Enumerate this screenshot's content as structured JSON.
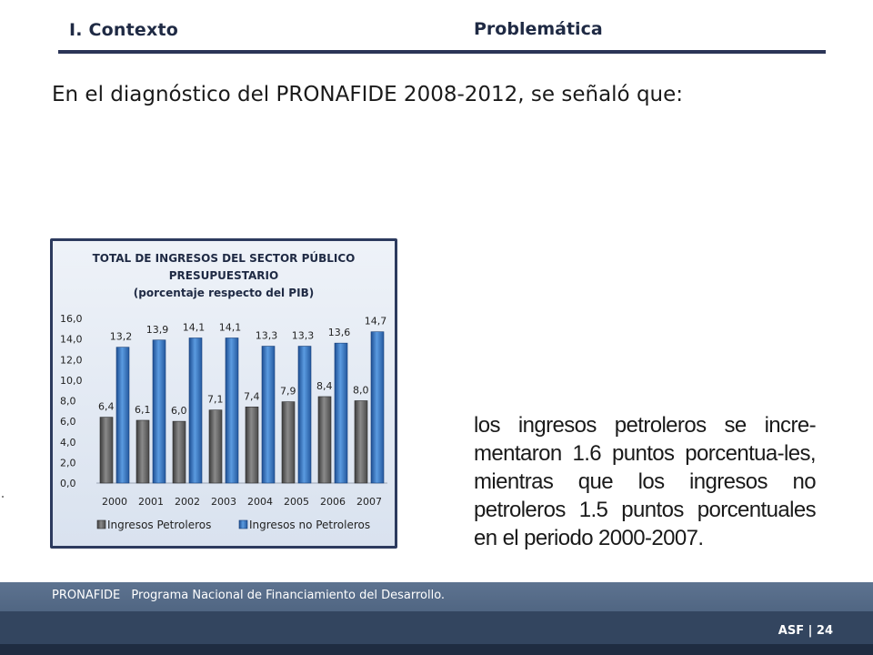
{
  "header": {
    "section": "I. Contexto",
    "title": "Problemática"
  },
  "intro": "En el diagnóstico del PRONAFIDE 2008-2012, se señaló que:",
  "body_text": "los ingresos petroleros se incre-mentaron 1.6 puntos porcentua-les, mientras que los ingresos no petroleros 1.5 puntos porcentuales en el periodo 2000-2007.",
  "footer": {
    "abbr": "PRONAFIDE",
    "definition": "Programa Nacional de Financiamiento del Desarrollo.",
    "page": "ASF | 24"
  },
  "colors": {
    "accent": "#2b3557",
    "petroleros": "#6e6e6e",
    "no_petroleros": "#3b78c8"
  },
  "chart_data": {
    "type": "bar",
    "title_lines": [
      "TOTAL  DE INGRESOS  DEL SECTOR PÚBLICO",
      "PRESUPUESTARIO",
      "(porcentaje respecto del PIB)"
    ],
    "categories": [
      "2000",
      "2001",
      "2002",
      "2003",
      "2004",
      "2005",
      "2006",
      "2007"
    ],
    "series": [
      {
        "name": "Ingresos Petroleros",
        "values": [
          6.4,
          6.1,
          6.0,
          7.1,
          7.4,
          7.9,
          8.4,
          8.0
        ],
        "labels": [
          "6,4",
          "6,1",
          "6,0",
          "7,1",
          "7,4",
          "7,9",
          "8,4",
          "8,0"
        ]
      },
      {
        "name": "Ingresos no Petroleros",
        "values": [
          13.2,
          13.9,
          14.1,
          14.1,
          13.3,
          13.3,
          13.6,
          14.7
        ],
        "labels": [
          "13,2",
          "13,9",
          "14,1",
          "14,1",
          "13,3",
          "13,3",
          "13,6",
          "14,7"
        ]
      }
    ],
    "yticks": [
      "0,0",
      "2,0",
      "4,0",
      "6,0",
      "8,0",
      "10,0",
      "12,0",
      "14,0",
      "16,0"
    ],
    "ylim": [
      0,
      16
    ],
    "grid": false,
    "legend": "bottom"
  }
}
